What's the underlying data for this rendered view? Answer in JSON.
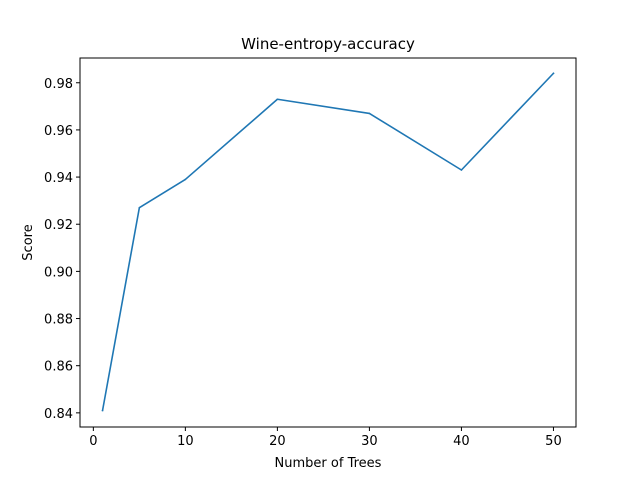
{
  "chart_data": {
    "type": "line",
    "title": "Wine-entropy-accuracy",
    "xlabel": "Number of Trees",
    "ylabel": "Score",
    "xlim": [
      -1.45,
      52.45
    ],
    "ylim": [
      0.834,
      0.9905
    ],
    "xticks": [
      0,
      10,
      20,
      30,
      40,
      50
    ],
    "yticks": [
      0.84,
      0.86,
      0.88,
      0.9,
      0.92,
      0.94,
      0.96,
      0.98
    ],
    "grid": false,
    "series": [
      {
        "color": "#1f77b4",
        "x": [
          1,
          5,
          10,
          20,
          30,
          40,
          50
        ],
        "y": [
          0.841,
          0.927,
          0.939,
          0.973,
          0.967,
          0.943,
          0.984
        ]
      }
    ]
  }
}
